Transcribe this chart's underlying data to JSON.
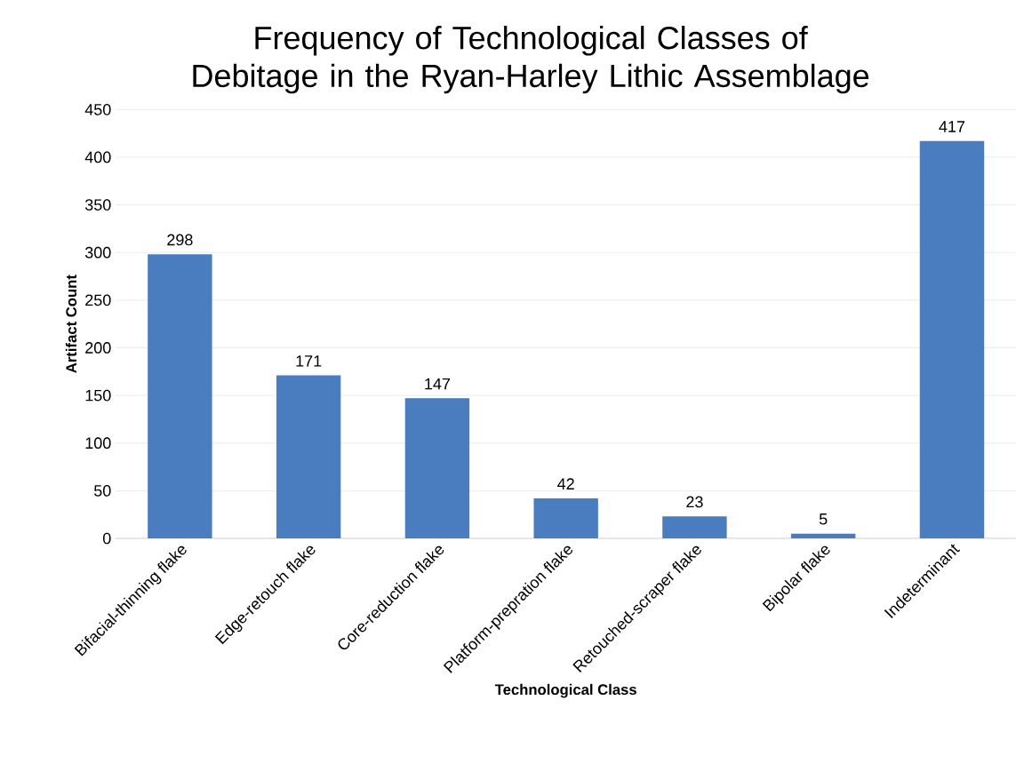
{
  "chart_data": {
    "type": "bar",
    "title": "Frequency of Technological Classes of Debitage in the Ryan-Harley Lithic Assemblage",
    "xlabel": "Technological Class",
    "ylabel": "Artifact Count",
    "categories": [
      "Bifacial-thinning flake",
      "Edge-retouch flake",
      "Core-reduction flake",
      "Platform-prepration flake",
      "Retouched-scraper flake",
      "Bipolar flake",
      "Indeterminant"
    ],
    "values": [
      298,
      171,
      147,
      42,
      23,
      5,
      417
    ],
    "color": "#4a7dbf",
    "ylim": [
      0,
      450
    ],
    "yticks": [
      0,
      50,
      100,
      150,
      200,
      250,
      300,
      350,
      400,
      450
    ],
    "grid": "y",
    "data_labels": true
  }
}
